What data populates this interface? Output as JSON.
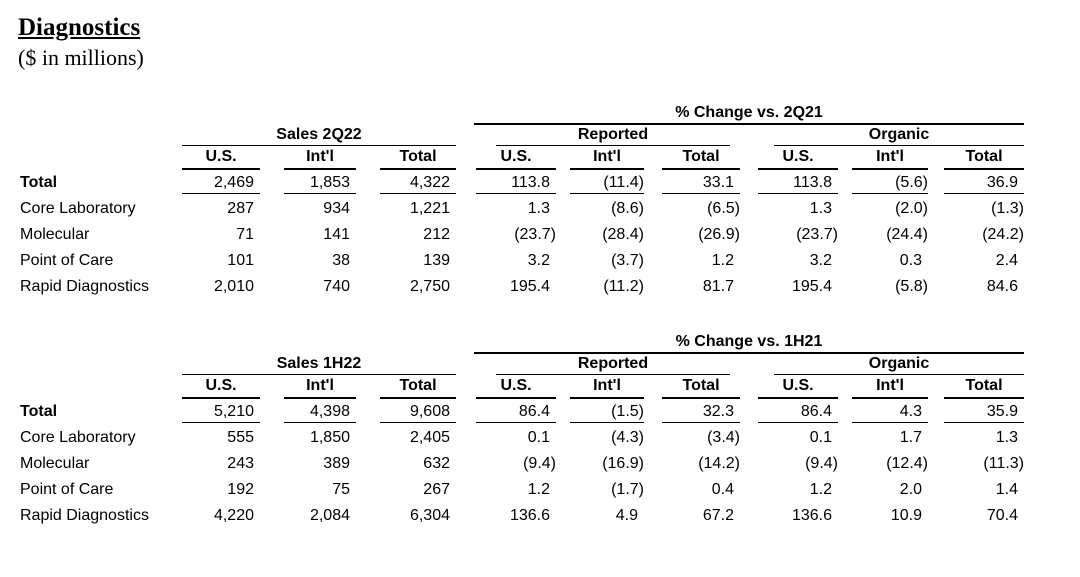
{
  "title": "Diagnostics",
  "subtitle": "($ in millions)",
  "sections": [
    {
      "pct_header": "% Change vs. 2Q21",
      "sales_header": "Sales 2Q22",
      "reported_label": "Reported",
      "organic_label": "Organic",
      "col_labels": [
        "U.S.",
        "Int'l",
        "Total",
        "U.S.",
        "Int'l",
        "Total",
        "U.S.",
        "Int'l",
        "Total"
      ],
      "rows": [
        {
          "label": "Total",
          "values": [
            "2,469",
            "1,853",
            "4,322",
            "113.8",
            "(11.4)",
            "33.1",
            "113.8",
            "(5.6)",
            "36.9"
          ]
        },
        {
          "label": "Core Laboratory",
          "values": [
            "287",
            "934",
            "1,221",
            "1.3",
            "(8.6)",
            "(6.5)",
            "1.3",
            "(2.0)",
            "(1.3)"
          ]
        },
        {
          "label": "Molecular",
          "values": [
            "71",
            "141",
            "212",
            "(23.7)",
            "(28.4)",
            "(26.9)",
            "(23.7)",
            "(24.4)",
            "(24.2)"
          ]
        },
        {
          "label": "Point of Care",
          "values": [
            "101",
            "38",
            "139",
            "3.2",
            "(3.7)",
            "1.2",
            "3.2",
            "0.3",
            "2.4"
          ]
        },
        {
          "label": "Rapid Diagnostics",
          "values": [
            "2,010",
            "740",
            "2,750",
            "195.4",
            "(11.2)",
            "81.7",
            "195.4",
            "(5.8)",
            "84.6"
          ]
        }
      ]
    },
    {
      "pct_header": "% Change vs. 1H21",
      "sales_header": "Sales 1H22",
      "reported_label": "Reported",
      "organic_label": "Organic",
      "col_labels": [
        "U.S.",
        "Int'l",
        "Total",
        "U.S.",
        "Int'l",
        "Total",
        "U.S.",
        "Int'l",
        "Total"
      ],
      "rows": [
        {
          "label": "Total",
          "values": [
            "5,210",
            "4,398",
            "9,608",
            "86.4",
            "(1.5)",
            "32.3",
            "86.4",
            "4.3",
            "35.9"
          ]
        },
        {
          "label": "Core Laboratory",
          "values": [
            "555",
            "1,850",
            "2,405",
            "0.1",
            "(4.3)",
            "(3.4)",
            "0.1",
            "1.7",
            "1.3"
          ]
        },
        {
          "label": "Molecular",
          "values": [
            "243",
            "389",
            "632",
            "(9.4)",
            "(16.9)",
            "(14.2)",
            "(9.4)",
            "(12.4)",
            "(11.3)"
          ]
        },
        {
          "label": "Point of Care",
          "values": [
            "192",
            "75",
            "267",
            "1.2",
            "(1.7)",
            "0.4",
            "1.2",
            "2.0",
            "1.4"
          ]
        },
        {
          "label": "Rapid Diagnostics",
          "values": [
            "4,220",
            "2,084",
            "6,304",
            "136.6",
            "4.9",
            "67.2",
            "136.6",
            "10.9",
            "70.4"
          ]
        }
      ]
    }
  ]
}
